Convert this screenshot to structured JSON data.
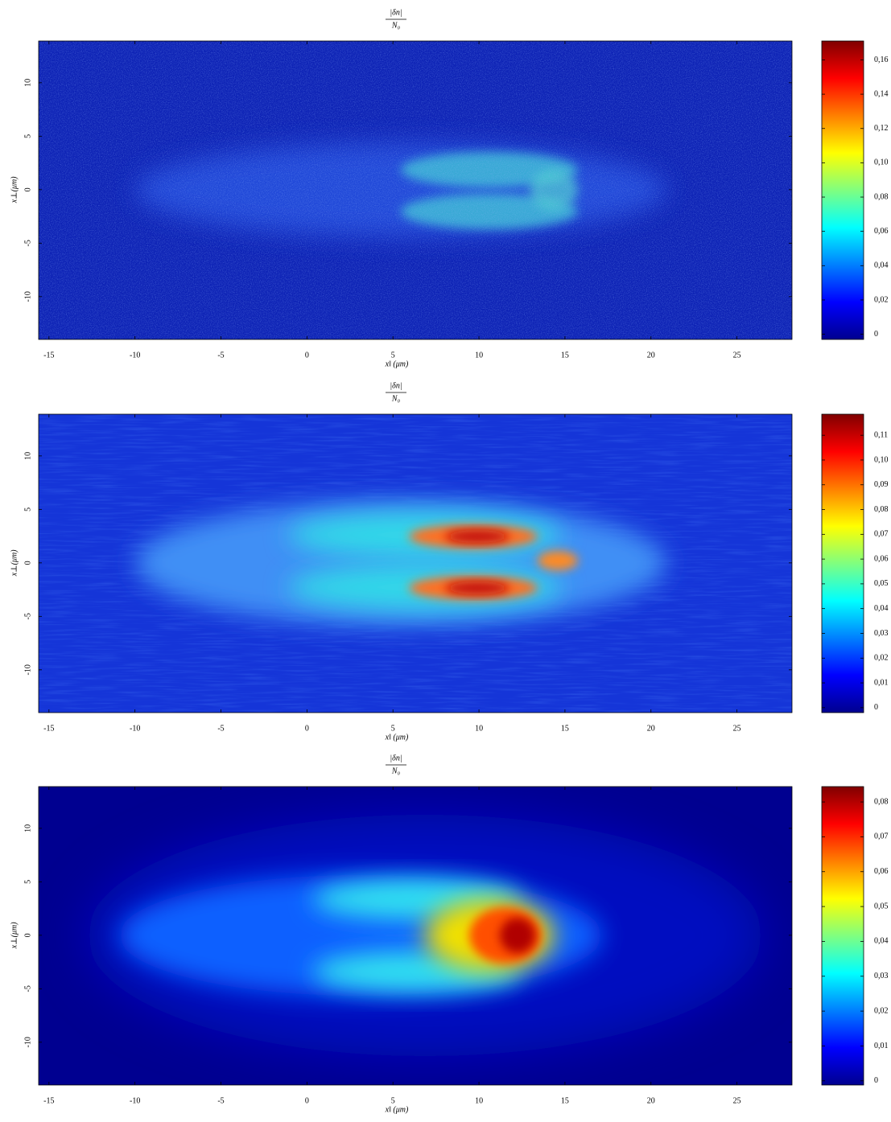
{
  "chart_data": [
    {
      "type": "heatmap",
      "colormap": "jet",
      "title": {
        "numerator": "|δn|",
        "denominator": "N₀"
      },
      "x_label": "x‖ (μm)",
      "y_label": "x⊥(μm)",
      "xlim": [
        -15.6,
        28.2
      ],
      "xticks": [
        -15,
        -10,
        -5,
        0,
        5,
        10,
        15,
        20,
        25
      ],
      "ylim": [
        -14,
        13.9
      ],
      "yticks": [
        -10,
        -5,
        0,
        5,
        10
      ],
      "clim": [
        -0.003,
        0.171
      ],
      "cticks": [
        0,
        {
          "value": 0.02,
          "label": "0,02"
        },
        {
          "value": 0.04,
          "label": "0,04"
        },
        {
          "value": 0.06,
          "label": "0,06"
        },
        {
          "value": 0.08,
          "label": "0,08"
        },
        {
          "value": 0.1,
          "label": "0,10"
        },
        {
          "value": 0.12,
          "label": "0,12"
        },
        {
          "value": 0.14,
          "label": "0,14"
        },
        {
          "value": 0.16,
          "label": "0,16"
        }
      ]
    },
    {
      "type": "heatmap",
      "colormap": "jet",
      "title": {
        "numerator": "|δn|",
        "denominator": "N₀"
      },
      "x_label": "x‖ (μm)",
      "y_label": "x⊥(μm)",
      "xlim": [
        -15.6,
        28.2
      ],
      "xticks": [
        -15,
        -10,
        -5,
        0,
        5,
        10,
        15,
        20,
        25
      ],
      "ylim": [
        -14,
        13.9
      ],
      "yticks": [
        -10,
        -5,
        0,
        5,
        10
      ],
      "clim": [
        -0.002,
        0.1185
      ],
      "cticks": [
        0,
        {
          "value": 0.01,
          "label": "0,01"
        },
        {
          "value": 0.02,
          "label": "0,02"
        },
        {
          "value": 0.03,
          "label": "0,03"
        },
        {
          "value": 0.04,
          "label": "0,04"
        },
        {
          "value": 0.05,
          "label": "0,05"
        },
        {
          "value": 0.06,
          "label": "0,06"
        },
        {
          "value": 0.07,
          "label": "0,07"
        },
        {
          "value": 0.08,
          "label": "0,08"
        },
        {
          "value": 0.09,
          "label": "0,09"
        },
        {
          "value": 0.1,
          "label": "0,10"
        },
        {
          "value": 0.11,
          "label": "0,11"
        }
      ]
    },
    {
      "type": "heatmap",
      "colormap": "jet",
      "title": {
        "numerator": "|δn|",
        "denominator": "N₀"
      },
      "x_label": "x‖ (μm)",
      "y_label": "x⊥(μm)",
      "xlim": [
        -15.6,
        28.2
      ],
      "xticks": [
        -15,
        -10,
        -5,
        0,
        5,
        10,
        15,
        20,
        25
      ],
      "ylim": [
        -14,
        13.9
      ],
      "yticks": [
        -10,
        -5,
        0,
        5,
        10
      ],
      "clim": [
        -0.0012,
        0.0844
      ],
      "cticks": [
        0,
        {
          "value": 0.01,
          "label": "0,01"
        },
        {
          "value": 0.02,
          "label": "0,02"
        },
        {
          "value": 0.03,
          "label": "0,03"
        },
        {
          "value": 0.04,
          "label": "0,04"
        },
        {
          "value": 0.05,
          "label": "0,05"
        },
        {
          "value": 0.06,
          "label": "0,06"
        },
        {
          "value": 0.07,
          "label": "0,07"
        },
        {
          "value": 0.08,
          "label": "0,08"
        }
      ]
    }
  ]
}
